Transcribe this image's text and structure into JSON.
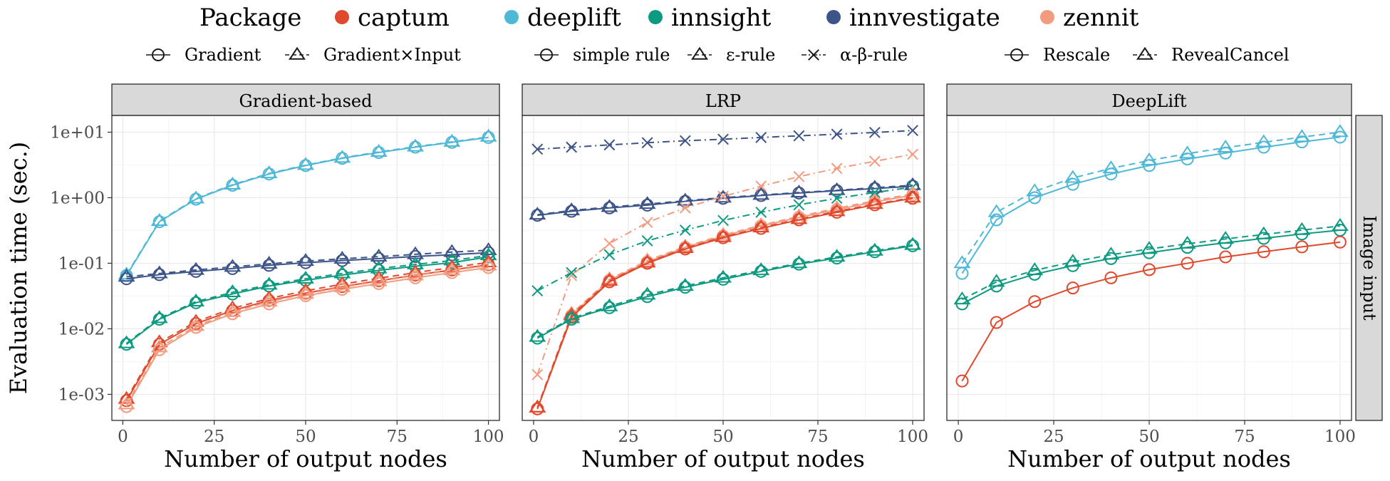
{
  "legend": {
    "title": "Package",
    "packages": [
      {
        "label": "captum",
        "color": "#e0492d"
      },
      {
        "label": "deeplift",
        "color": "#4eb8d6"
      },
      {
        "label": "innsight",
        "color": "#0e9a80"
      },
      {
        "label": "innvestigate",
        "color": "#3c5488"
      },
      {
        "label": "zennit",
        "color": "#f39b7f"
      }
    ],
    "method_groups": [
      {
        "items": [
          {
            "label": "Gradient",
            "marker": "circle",
            "line": "solid"
          },
          {
            "label": "Gradient×Input",
            "marker": "triangle",
            "line": "dashed"
          }
        ]
      },
      {
        "items": [
          {
            "label": "simple rule",
            "marker": "circle",
            "line": "solid"
          },
          {
            "label": "ε-rule",
            "marker": "triangle",
            "line": "dashed"
          },
          {
            "label": "α-β-rule",
            "marker": "cross",
            "line": "dotdash"
          }
        ]
      },
      {
        "items": [
          {
            "label": "Rescale",
            "marker": "circle",
            "line": "solid"
          },
          {
            "label": "RevealCancel",
            "marker": "triangle",
            "line": "dashed"
          }
        ]
      }
    ]
  },
  "side_strip": "Image input",
  "chart_data": [
    {
      "type": "line",
      "title": "Gradient-based",
      "xlabel": "Number of output nodes",
      "ylabel": "Evaluation time (sec.)",
      "yscale": "log",
      "xlim": [
        -3,
        103
      ],
      "ylim": [
        0.0004,
        18
      ],
      "x_ticks": [
        "0",
        "25",
        "50",
        "75",
        "100"
      ],
      "y_ticks": [
        "1e-03",
        "1e-02",
        "1e-01",
        "1e+00",
        "1e+01"
      ],
      "x": [
        1,
        10,
        20,
        30,
        40,
        50,
        60,
        70,
        80,
        90,
        100
      ],
      "series": [
        {
          "package": "deeplift",
          "method": "Gradient",
          "marker": "circle",
          "values": [
            0.065,
            0.43,
            0.95,
            1.55,
            2.3,
            3.1,
            4.0,
            4.9,
            5.9,
            7.0,
            8.3
          ]
        },
        {
          "package": "deeplift",
          "method": "Gradient×Input",
          "marker": "triangle",
          "values": [
            0.067,
            0.44,
            0.97,
            1.58,
            2.35,
            3.15,
            4.05,
            5.0,
            6.0,
            7.1,
            8.5
          ]
        },
        {
          "package": "innvestigate",
          "method": "Gradient",
          "marker": "circle",
          "values": [
            0.058,
            0.067,
            0.075,
            0.083,
            0.093,
            0.102,
            0.11,
            0.118,
            0.127,
            0.135,
            0.145
          ]
        },
        {
          "package": "innvestigate",
          "method": "Gradient×Input",
          "marker": "triangle",
          "values": [
            0.062,
            0.07,
            0.079,
            0.088,
            0.098,
            0.108,
            0.117,
            0.126,
            0.137,
            0.148,
            0.158
          ]
        },
        {
          "package": "innsight",
          "method": "Gradient",
          "marker": "circle",
          "values": [
            0.0058,
            0.014,
            0.025,
            0.034,
            0.045,
            0.055,
            0.066,
            0.078,
            0.09,
            0.102,
            0.125
          ]
        },
        {
          "package": "innsight",
          "method": "Gradient×Input",
          "marker": "triangle",
          "values": [
            0.006,
            0.0145,
            0.026,
            0.036,
            0.047,
            0.058,
            0.07,
            0.083,
            0.096,
            0.11,
            0.132
          ]
        },
        {
          "package": "captum",
          "method": "Gradient",
          "marker": "circle",
          "values": [
            0.0008,
            0.0058,
            0.012,
            0.019,
            0.027,
            0.035,
            0.044,
            0.054,
            0.066,
            0.079,
            0.095
          ]
        },
        {
          "package": "captum",
          "method": "Gradient×Input",
          "marker": "triangle",
          "values": [
            0.00085,
            0.0062,
            0.0128,
            0.0205,
            0.029,
            0.038,
            0.048,
            0.059,
            0.072,
            0.086,
            0.103
          ]
        },
        {
          "package": "zennit",
          "method": "Gradient",
          "marker": "circle",
          "values": [
            0.00065,
            0.0048,
            0.0105,
            0.017,
            0.024,
            0.032,
            0.04,
            0.049,
            0.06,
            0.072,
            0.086
          ]
        },
        {
          "package": "zennit",
          "method": "Gradient×Input",
          "marker": "triangle",
          "values": [
            0.0007,
            0.0052,
            0.011,
            0.018,
            0.026,
            0.034,
            0.043,
            0.053,
            0.065,
            0.078,
            0.092
          ]
        }
      ]
    },
    {
      "type": "line",
      "title": "LRP",
      "xlabel": "Number of output nodes",
      "yscale": "log",
      "xlim": [
        -3,
        103
      ],
      "ylim": [
        0.0004,
        18
      ],
      "x_ticks": [
        "0",
        "25",
        "50",
        "75",
        "100"
      ],
      "x": [
        1,
        10,
        20,
        30,
        40,
        50,
        60,
        70,
        80,
        90,
        100
      ],
      "series": [
        {
          "package": "innvestigate",
          "method": "α-β-rule",
          "marker": "cross",
          "values": [
            5.5,
            5.9,
            6.4,
            6.9,
            7.4,
            7.8,
            8.3,
            8.8,
            9.3,
            9.9,
            10.6
          ]
        },
        {
          "package": "innvestigate",
          "method": "simple rule",
          "marker": "circle",
          "values": [
            0.54,
            0.62,
            0.7,
            0.77,
            0.88,
            0.98,
            1.08,
            1.18,
            1.28,
            1.38,
            1.5
          ]
        },
        {
          "package": "innvestigate",
          "method": "ε-rule",
          "marker": "triangle",
          "values": [
            0.55,
            0.64,
            0.72,
            0.8,
            0.9,
            1.0,
            1.1,
            1.2,
            1.3,
            1.42,
            1.55
          ]
        },
        {
          "package": "zennit",
          "method": "α-β-rule",
          "marker": "cross",
          "values": [
            0.002,
            0.065,
            0.2,
            0.42,
            0.7,
            1.05,
            1.5,
            2.1,
            2.8,
            3.6,
            4.6
          ]
        },
        {
          "package": "innsight",
          "method": "α-β-rule",
          "marker": "cross",
          "values": [
            0.038,
            0.072,
            0.135,
            0.22,
            0.32,
            0.45,
            0.6,
            0.78,
            0.98,
            1.2,
            1.45
          ]
        },
        {
          "package": "zennit",
          "method": "simple rule",
          "marker": "circle",
          "values": [
            0.0006,
            0.016,
            0.055,
            0.105,
            0.175,
            0.26,
            0.37,
            0.5,
            0.66,
            0.86,
            1.1
          ]
        },
        {
          "package": "zennit",
          "method": "ε-rule",
          "marker": "triangle",
          "values": [
            0.00062,
            0.017,
            0.057,
            0.11,
            0.18,
            0.27,
            0.38,
            0.52,
            0.69,
            0.9,
            1.15
          ]
        },
        {
          "package": "captum",
          "method": "simple rule",
          "marker": "circle",
          "values": [
            0.0006,
            0.015,
            0.052,
            0.1,
            0.165,
            0.245,
            0.34,
            0.46,
            0.6,
            0.78,
            0.98
          ]
        },
        {
          "package": "captum",
          "method": "ε-rule",
          "marker": "triangle",
          "values": [
            0.00063,
            0.016,
            0.054,
            0.102,
            0.17,
            0.25,
            0.35,
            0.47,
            0.62,
            0.8,
            1.0
          ]
        },
        {
          "package": "innsight",
          "method": "simple rule",
          "marker": "circle",
          "values": [
            0.0072,
            0.014,
            0.021,
            0.031,
            0.043,
            0.057,
            0.075,
            0.097,
            0.12,
            0.15,
            0.185
          ]
        },
        {
          "package": "innsight",
          "method": "ε-rule",
          "marker": "triangle",
          "values": [
            0.0075,
            0.0145,
            0.022,
            0.033,
            0.045,
            0.06,
            0.078,
            0.1,
            0.125,
            0.155,
            0.19
          ]
        }
      ]
    },
    {
      "type": "line",
      "title": "DeepLift",
      "xlabel": "Number of output nodes",
      "yscale": "log",
      "xlim": [
        -3,
        103
      ],
      "ylim": [
        0.0004,
        18
      ],
      "x_ticks": [
        "0",
        "25",
        "50",
        "75",
        "100"
      ],
      "x": [
        1,
        10,
        20,
        30,
        40,
        50,
        60,
        70,
        80,
        90,
        100
      ],
      "series": [
        {
          "package": "deeplift",
          "method": "Rescale",
          "marker": "circle",
          "values": [
            0.07,
            0.46,
            1.0,
            1.6,
            2.3,
            3.1,
            3.9,
            4.8,
            5.9,
            7.1,
            8.4
          ]
        },
        {
          "package": "deeplift",
          "method": "RevealCancel",
          "marker": "triangle",
          "values": [
            0.1,
            0.6,
            1.25,
            2.0,
            2.8,
            3.7,
            4.7,
            5.8,
            7.0,
            8.4,
            10.0
          ]
        },
        {
          "package": "innsight",
          "method": "Rescale",
          "marker": "circle",
          "values": [
            0.024,
            0.045,
            0.068,
            0.092,
            0.118,
            0.145,
            0.175,
            0.205,
            0.24,
            0.28,
            0.32
          ]
        },
        {
          "package": "innsight",
          "method": "RevealCancel",
          "marker": "triangle",
          "values": [
            0.028,
            0.052,
            0.078,
            0.105,
            0.135,
            0.165,
            0.198,
            0.235,
            0.275,
            0.32,
            0.37
          ]
        },
        {
          "package": "captum",
          "method": "Rescale",
          "marker": "circle",
          "values": [
            0.0016,
            0.0125,
            0.026,
            0.042,
            0.06,
            0.08,
            0.1,
            0.125,
            0.15,
            0.178,
            0.21
          ]
        }
      ]
    }
  ]
}
